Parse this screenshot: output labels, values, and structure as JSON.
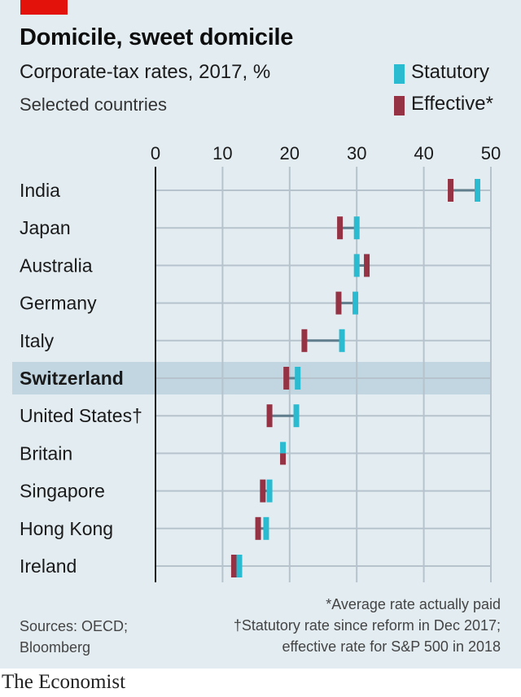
{
  "title": "Domicile, sweet domicile",
  "subtitle": "Corporate-tax rates, 2017, %",
  "note": "Selected countries",
  "legend": [
    {
      "label": "Statutory",
      "color": "#2bbbd0"
    },
    {
      "label": "Effective*",
      "color": "#953344"
    }
  ],
  "footnotes": {
    "sources_line1": "Sources: OECD;",
    "sources_line2": "Bloomberg",
    "asterisk": "*Average rate actually paid",
    "dagger_line1": "†Statutory rate since reform in Dec 2017;",
    "dagger_line2": "effective rate for S&P 500 in 2018"
  },
  "brand": "The Economist",
  "chart_data": {
    "type": "dumbbell",
    "x_ticks": [
      "0",
      "10",
      "20",
      "30",
      "40",
      "50"
    ],
    "xlim": [
      0,
      50
    ],
    "grid": true,
    "highlight": "Switzerland",
    "categories": [
      "India",
      "Japan",
      "Australia",
      "Germany",
      "Italy",
      "Switzerland",
      "United States†",
      "Britain",
      "Singapore",
      "Hong Kong",
      "Ireland"
    ],
    "series": [
      {
        "name": "Statutory",
        "color": "#2bbbd0",
        "values": [
          48.0,
          30.0,
          30.0,
          29.8,
          27.8,
          21.2,
          21.0,
          19.0,
          17.0,
          16.5,
          12.5
        ]
      },
      {
        "name": "Effective*",
        "color": "#953344",
        "values": [
          44.0,
          27.5,
          31.5,
          27.3,
          22.2,
          19.5,
          17.0,
          19.0,
          16.0,
          15.3,
          11.7
        ]
      }
    ]
  }
}
